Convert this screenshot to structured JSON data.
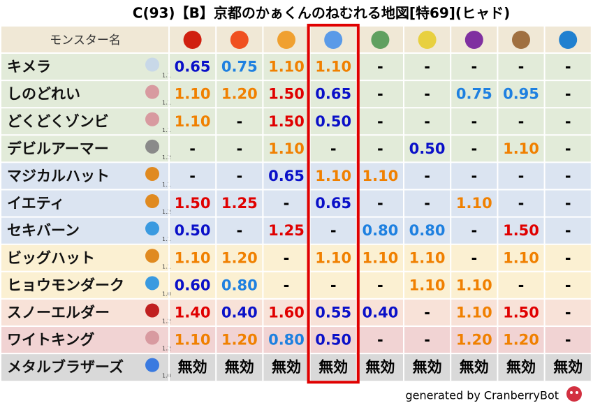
{
  "header": {
    "title": "C(93)【B】京都のかぁくんのねむれる地図[特69](ヒャド)"
  },
  "table": {
    "name_header": "モンスター名",
    "rows": [
      {
        "name": "キメラ",
        "level": "1.1",
        "values": [
          "0.65",
          "0.75",
          "1.10",
          "1.10",
          "-",
          "-",
          "-",
          "-",
          "-"
        ]
      },
      {
        "name": "しのどれい",
        "level": "1.1",
        "values": [
          "1.10",
          "1.20",
          "1.50",
          "0.65",
          "-",
          "-",
          "0.75",
          "0.95",
          "-"
        ]
      },
      {
        "name": "どくどくゾンビ",
        "level": "1.1",
        "values": [
          "1.10",
          "-",
          "1.50",
          "0.50",
          "-",
          "-",
          "-",
          "-",
          "-"
        ]
      },
      {
        "name": "デビルアーマー",
        "level": "1.2",
        "values": [
          "-",
          "-",
          "1.10",
          "-",
          "-",
          "0.50",
          "-",
          "1.10",
          "-"
        ]
      },
      {
        "name": "マジカルハット",
        "level": "1.1",
        "values": [
          "-",
          "-",
          "0.65",
          "1.10",
          "1.10",
          "-",
          "-",
          "-",
          "-"
        ]
      },
      {
        "name": "イエティ",
        "level": "1.2",
        "values": [
          "1.50",
          "1.25",
          "-",
          "0.65",
          "-",
          "-",
          "1.10",
          "-",
          "-"
        ]
      },
      {
        "name": "セキバーン",
        "level": "1.1",
        "values": [
          "0.50",
          "-",
          "1.25",
          "-",
          "0.80",
          "0.80",
          "-",
          "1.50",
          "-"
        ]
      },
      {
        "name": "ビッグハット",
        "level": "1.1",
        "values": [
          "1.10",
          "1.20",
          "-",
          "1.10",
          "1.10",
          "1.10",
          "-",
          "1.10",
          "-"
        ]
      },
      {
        "name": "ヒョウモンダーク",
        "level": "1.0",
        "values": [
          "0.60",
          "0.80",
          "-",
          "-",
          "-",
          "1.10",
          "1.10",
          "-",
          "-"
        ]
      },
      {
        "name": "スノーエルダー",
        "level": "1.2",
        "values": [
          "1.40",
          "0.40",
          "1.60",
          "0.55",
          "0.40",
          "-",
          "1.10",
          "1.50",
          "-"
        ]
      },
      {
        "name": "ワイトキング",
        "level": "1.2",
        "values": [
          "1.10",
          "1.20",
          "0.80",
          "0.50",
          "-",
          "-",
          "1.20",
          "1.20",
          "-"
        ]
      },
      {
        "name": "メタルブラザーズ",
        "level": "1.0",
        "values": [
          "無効",
          "無効",
          "無効",
          "無効",
          "無効",
          "無効",
          "無効",
          "無効",
          "無効"
        ]
      }
    ]
  },
  "footer": {
    "credit": "generated by CranberryBot"
  }
}
